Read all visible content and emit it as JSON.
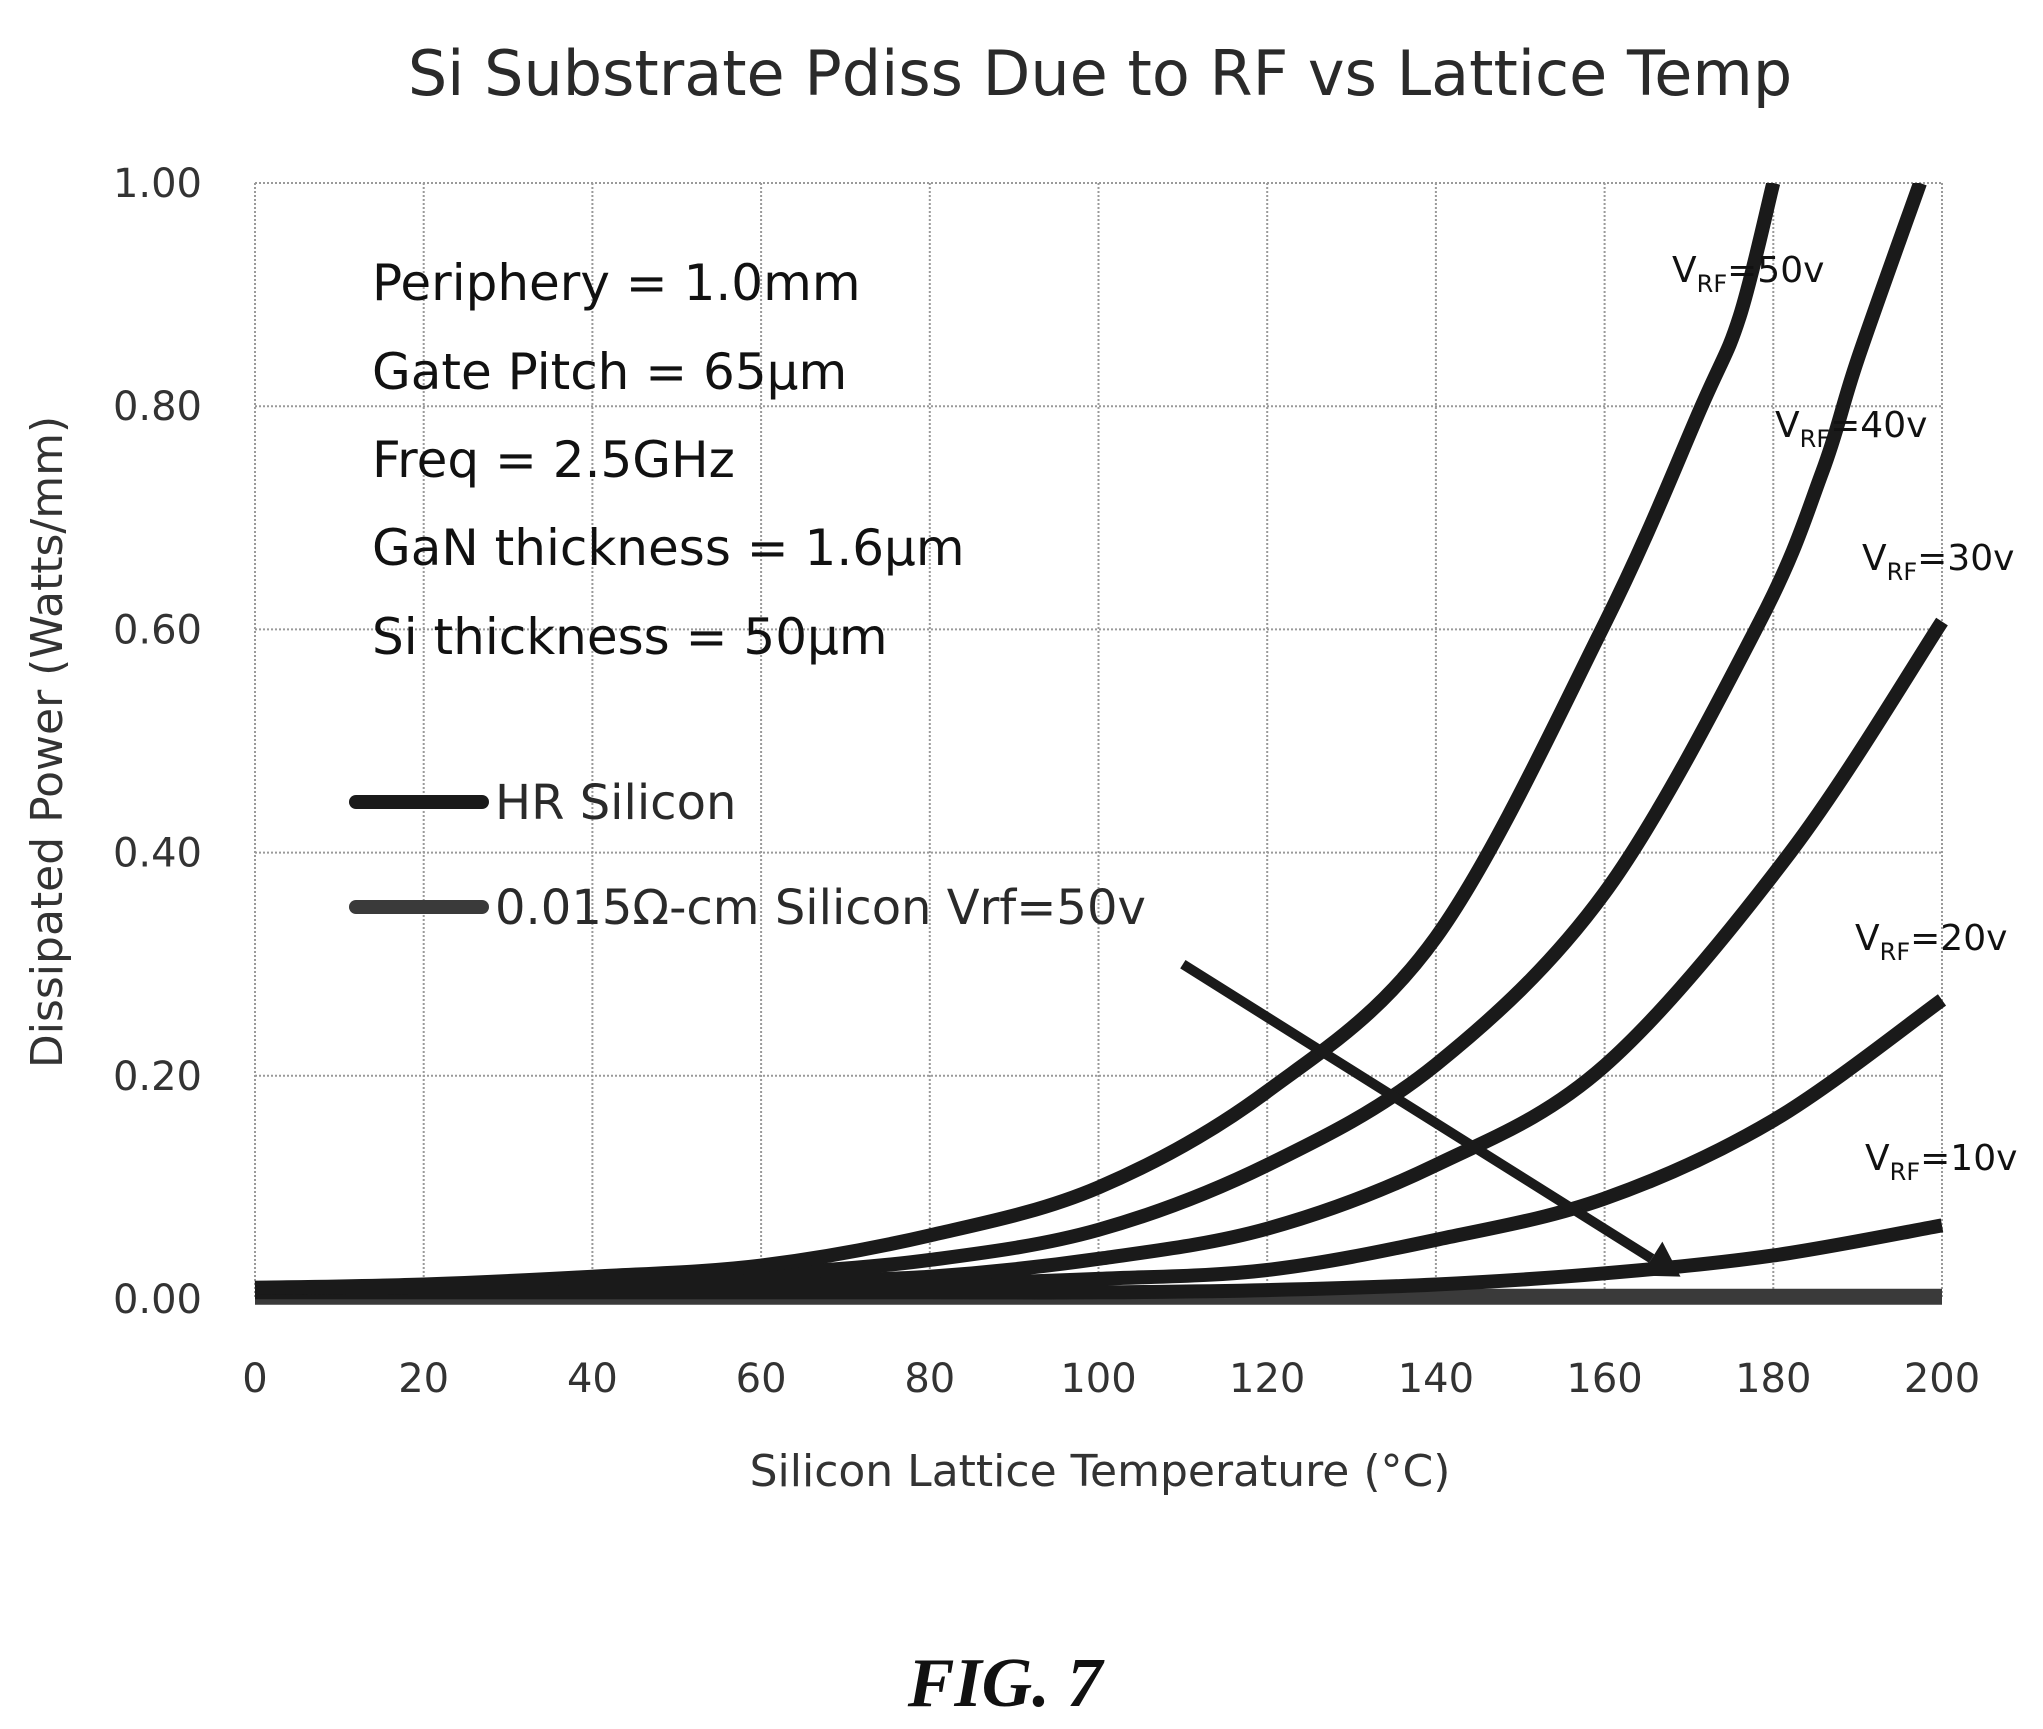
{
  "chart_data": {
    "type": "line",
    "title": "Si Substrate Pdiss Due to RF vs Lattice Temp",
    "xlabel": "Silicon Lattice Temperature (°C)",
    "ylabel": "Dissipated Power (Watts/mm)",
    "xlim": [
      0,
      200
    ],
    "ylim": [
      0,
      1.0
    ],
    "x_ticks": [
      "0",
      "20",
      "40",
      "60",
      "80",
      "100",
      "120",
      "140",
      "160",
      "180",
      "200"
    ],
    "y_ticks": [
      "0.00",
      "0.20",
      "0.40",
      "0.60",
      "0.80",
      "1.00"
    ],
    "x_tick_values": [
      0,
      20,
      40,
      60,
      80,
      100,
      120,
      140,
      160,
      180,
      200
    ],
    "y_tick_values": [
      0,
      0.2,
      0.4,
      0.6,
      0.8,
      1.0
    ],
    "grid": true,
    "annotations": [
      "Periphery = 1.0mm",
      "Gate Pitch = 65µm",
      "Freq = 2.5GHz",
      "GaN thickness = 1.6µm",
      "Si thickness = 50µm"
    ],
    "legend": {
      "placement": "left-middle",
      "entries": [
        {
          "label": "HR Silicon",
          "color": "#1a1a1a"
        },
        {
          "label": "0.015Ω-cm Silicon Vrf=50v",
          "color": "#3a3a3a"
        }
      ]
    },
    "series": [
      {
        "name": "HR Silicon VRF=50v",
        "group": "HR Silicon",
        "label_main": "V",
        "label_sub": "RF",
        "label_rest": "=50v",
        "color": "#1a1a1a",
        "x": [
          0,
          20,
          40,
          60,
          80,
          100,
          120,
          140,
          160,
          171.5,
          176,
          180
        ],
        "y": [
          0.01,
          0.013,
          0.02,
          0.03,
          0.057,
          0.1,
          0.186,
          0.324,
          0.605,
          0.8,
          0.88,
          1.0
        ]
      },
      {
        "name": "HR Silicon VRF=40v",
        "group": "HR Silicon",
        "label_main": "V",
        "label_sub": "RF",
        "label_rest": "=40v",
        "color": "#1a1a1a",
        "x": [
          0,
          20,
          40,
          60,
          80,
          100,
          120,
          140,
          160,
          178.4,
          185.8,
          190,
          197.4
        ],
        "y": [
          0.01,
          0.011,
          0.015,
          0.022,
          0.035,
          0.062,
          0.12,
          0.21,
          0.364,
          0.607,
          0.741,
          0.842,
          1.0
        ]
      },
      {
        "name": "HR Silicon VRF=30v",
        "group": "HR Silicon",
        "label_main": "V",
        "label_sub": "RF",
        "label_rest": "=30v",
        "color": "#1a1a1a",
        "x": [
          0,
          20,
          40,
          60,
          80,
          100,
          120,
          140,
          160,
          182,
          200
        ],
        "y": [
          0.01,
          0.01,
          0.012,
          0.015,
          0.02,
          0.036,
          0.063,
          0.12,
          0.209,
          0.4,
          0.607
        ]
      },
      {
        "name": "HR Silicon VRF=20v",
        "group": "HR Silicon",
        "label_main": "V",
        "label_sub": "RF",
        "label_rest": "=20v",
        "color": "#1a1a1a",
        "x": [
          0,
          20,
          40,
          60,
          80,
          100,
          120,
          140,
          160,
          180,
          200
        ],
        "y": [
          0.008,
          0.008,
          0.009,
          0.01,
          0.013,
          0.018,
          0.026,
          0.053,
          0.09,
          0.16,
          0.268
        ]
      },
      {
        "name": "HR Silicon VRF=10v",
        "group": "HR Silicon",
        "label_main": "V",
        "label_sub": "RF",
        "label_rest": "=10v",
        "color": "#1a1a1a",
        "x": [
          0,
          20,
          40,
          60,
          80,
          100,
          120,
          140,
          160,
          180,
          200
        ],
        "y": [
          0.006,
          0.006,
          0.006,
          0.006,
          0.006,
          0.006,
          0.008,
          0.013,
          0.023,
          0.039,
          0.066
        ]
      },
      {
        "name": "0.015Ω-cm Silicon Vrf=50v",
        "group": "0.015Ω-cm Silicon Vrf=50v",
        "color": "#3a3a3a",
        "x": [
          0,
          200
        ],
        "y": [
          0.002,
          0.002
        ]
      }
    ],
    "arrow": {
      "from": [
        110,
        0.3
      ],
      "to": [
        169,
        0.02
      ]
    }
  },
  "caption": "FIG. 7"
}
